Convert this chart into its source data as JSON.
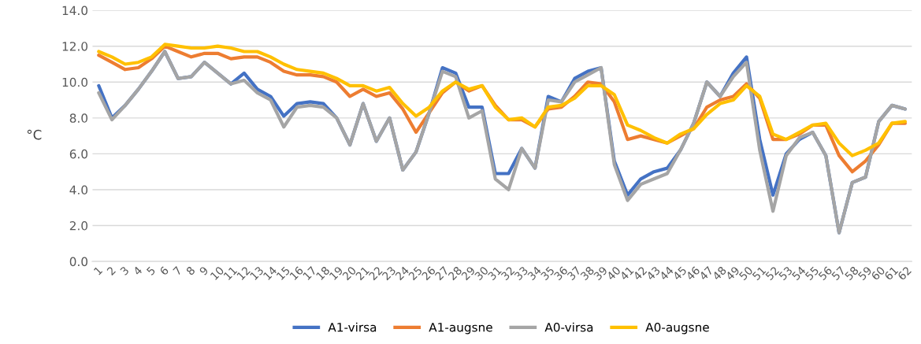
{
  "chart_data": {
    "type": "line",
    "ylabel": "°C",
    "categories": [
      "1",
      "2",
      "3",
      "4",
      "5",
      "6",
      "7",
      "8",
      "9",
      "10",
      "11",
      "12",
      "13",
      "14",
      "15",
      "16",
      "17",
      "18",
      "19",
      "20",
      "21",
      "22",
      "23",
      "24",
      "25",
      "26",
      "27",
      "28",
      "29",
      "30",
      "31",
      "32",
      "33",
      "34",
      "35",
      "36",
      "37",
      "38",
      "39",
      "40",
      "41",
      "42",
      "43",
      "44",
      "45",
      "46",
      "47",
      "48",
      "49",
      "50",
      "51",
      "52",
      "53",
      "54",
      "55",
      "56",
      "57",
      "58",
      "59",
      "60",
      "61",
      "62"
    ],
    "series": [
      {
        "name": "A1-virsa",
        "color": "#4472c4",
        "values": [
          9.8,
          8.0,
          8.7,
          9.6,
          10.6,
          11.7,
          10.2,
          10.3,
          11.1,
          10.5,
          9.9,
          10.5,
          9.6,
          9.2,
          8.1,
          8.8,
          8.9,
          8.8,
          8.0,
          6.5,
          8.8,
          6.7,
          8.0,
          5.1,
          6.1,
          8.3,
          10.8,
          10.5,
          8.6,
          8.6,
          4.9,
          4.9,
          6.3,
          5.2,
          9.2,
          8.9,
          10.2,
          10.6,
          10.8,
          5.6,
          3.7,
          4.6,
          5.0,
          5.2,
          6.2,
          7.7,
          10.0,
          9.2,
          10.5,
          11.4,
          6.8,
          3.7,
          6.0,
          6.8,
          7.2,
          5.9,
          1.6,
          4.4,
          4.7,
          7.8,
          8.7,
          8.5
        ]
      },
      {
        "name": "A1-augsne",
        "color": "#ed7d31",
        "values": [
          11.5,
          11.1,
          10.7,
          10.8,
          11.3,
          12.0,
          11.7,
          11.4,
          11.6,
          11.6,
          11.3,
          11.4,
          11.4,
          11.1,
          10.6,
          10.4,
          10.4,
          10.3,
          10.0,
          9.2,
          9.6,
          9.2,
          9.4,
          8.5,
          7.2,
          8.3,
          9.4,
          10.0,
          9.5,
          9.8,
          8.7,
          7.9,
          7.9,
          7.5,
          8.5,
          8.6,
          9.2,
          10.0,
          9.9,
          8.9,
          6.8,
          7.0,
          6.8,
          6.6,
          7.0,
          7.4,
          8.6,
          9.0,
          9.2,
          9.9,
          9.1,
          6.8,
          6.8,
          7.1,
          7.6,
          7.6,
          5.9,
          5.0,
          5.6,
          6.5,
          7.7,
          7.7
        ]
      },
      {
        "name": "A0-virsa",
        "color": "#a5a5a5",
        "values": [
          9.4,
          7.9,
          8.7,
          9.6,
          10.6,
          11.7,
          10.2,
          10.3,
          11.1,
          10.5,
          9.9,
          10.1,
          9.4,
          9.0,
          7.5,
          8.6,
          8.7,
          8.6,
          8.0,
          6.5,
          8.8,
          6.7,
          8.0,
          5.1,
          6.1,
          8.3,
          10.6,
          10.3,
          8.0,
          8.4,
          4.6,
          4.0,
          6.3,
          5.2,
          9.0,
          8.9,
          10.0,
          10.4,
          10.8,
          5.4,
          3.4,
          4.3,
          4.6,
          4.9,
          6.2,
          7.7,
          10.0,
          9.2,
          10.3,
          11.1,
          6.2,
          2.8,
          5.9,
          6.9,
          7.2,
          5.9,
          1.6,
          4.4,
          4.7,
          7.8,
          8.7,
          8.5
        ]
      },
      {
        "name": "A0-augsne",
        "color": "#ffc000",
        "values": [
          11.7,
          11.4,
          11.0,
          11.1,
          11.4,
          12.1,
          12.0,
          11.9,
          11.9,
          12.0,
          11.9,
          11.7,
          11.7,
          11.4,
          11.0,
          10.7,
          10.6,
          10.5,
          10.2,
          9.8,
          9.8,
          9.5,
          9.7,
          8.8,
          8.1,
          8.6,
          9.5,
          10.0,
          9.6,
          9.8,
          8.6,
          7.9,
          8.0,
          7.5,
          8.6,
          8.7,
          9.1,
          9.8,
          9.8,
          9.3,
          7.6,
          7.3,
          6.9,
          6.6,
          7.1,
          7.4,
          8.2,
          8.8,
          9.0,
          9.8,
          9.2,
          7.1,
          6.8,
          7.2,
          7.6,
          7.7,
          6.6,
          5.9,
          6.2,
          6.6,
          7.7,
          7.8
        ]
      }
    ],
    "ylim": [
      0,
      14
    ],
    "yticks": [
      {
        "value": 0,
        "label": "0.0"
      },
      {
        "value": 2,
        "label": "2.0"
      },
      {
        "value": 4,
        "label": "4.0"
      },
      {
        "value": 6,
        "label": "6.0"
      },
      {
        "value": 8,
        "label": "8.0"
      },
      {
        "value": 10,
        "label": "10.0"
      },
      {
        "value": 12,
        "label": "12.0"
      },
      {
        "value": 14,
        "label": "14.0"
      }
    ],
    "grid": "y",
    "legend": "bottom",
    "marker": "none",
    "line_style": "solid"
  }
}
